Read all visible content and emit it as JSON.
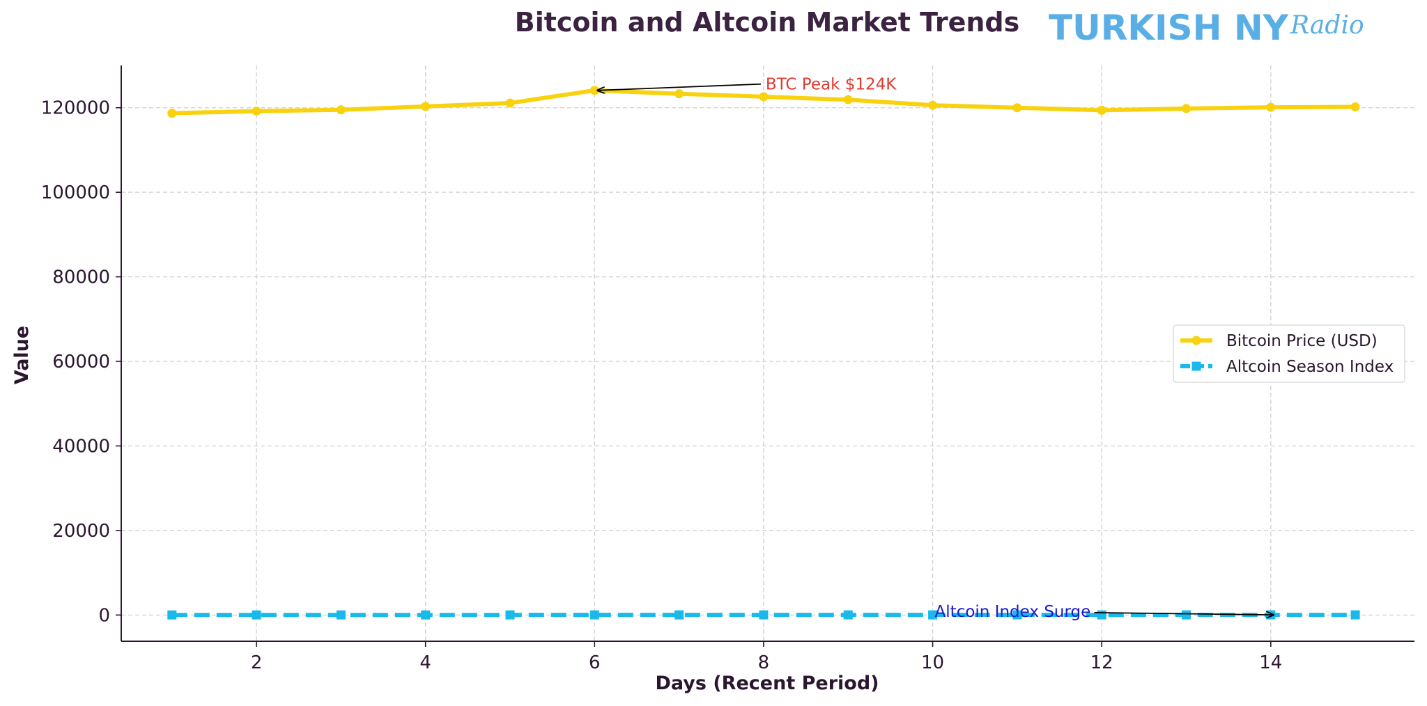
{
  "chart_data": {
    "type": "line",
    "title": "Bitcoin and Altcoin Market Trends",
    "logo": {
      "main": "TURKISH NY",
      "script": "Radio"
    },
    "xlabel": "Days (Recent Period)",
    "ylabel": "Value",
    "xlim": [
      0.4,
      15.7
    ],
    "ylim": [
      -6200,
      130000
    ],
    "xticks": [
      2,
      4,
      6,
      8,
      10,
      12,
      14
    ],
    "yticks": [
      0,
      20000,
      40000,
      60000,
      80000,
      100000,
      120000
    ],
    "grid": true,
    "legend_position": "center-right",
    "x": [
      1,
      2,
      3,
      4,
      5,
      6,
      7,
      8,
      9,
      10,
      11,
      12,
      13,
      14,
      15
    ],
    "series": [
      {
        "name": "Bitcoin Price (USD)",
        "color": "#f8d20e",
        "marker": "circle",
        "linestyle": "solid",
        "values": [
          118700,
          119200,
          119500,
          120300,
          121100,
          124100,
          123300,
          122600,
          121900,
          120600,
          120000,
          119400,
          119800,
          120100,
          120200
        ]
      },
      {
        "name": "Altcoin Season Index",
        "color": "#19b9ec",
        "marker": "square",
        "linestyle": "dashed",
        "values": [
          25,
          27,
          29,
          31,
          33,
          35,
          36,
          37,
          38,
          40,
          41,
          40,
          39,
          42,
          45
        ]
      }
    ],
    "annotations": [
      {
        "text": "BTC Peak $124K",
        "x": 6,
        "y": 124100,
        "text_x": 8.0,
        "text_y": 125600,
        "color": "#e03a2e"
      },
      {
        "text": "Altcoin Index Surge",
        "x": 14,
        "y": 42,
        "text_x": 10.0,
        "text_y": 900,
        "color": "#1a1acc"
      }
    ]
  }
}
